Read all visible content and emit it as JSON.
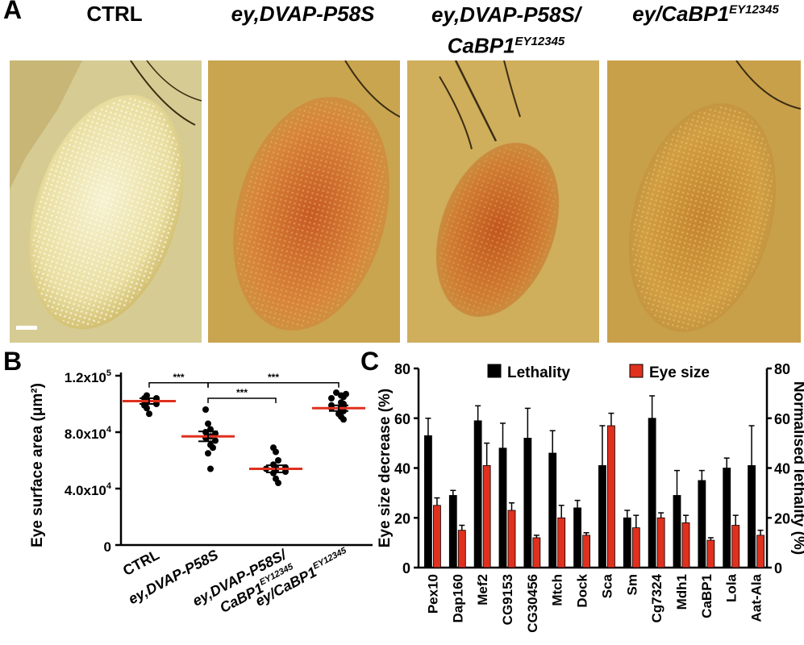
{
  "panelA": {
    "letter": "A",
    "genotypes": [
      {
        "main": "CTRL",
        "sup": "",
        "line2": "",
        "line2sup": ""
      },
      {
        "main": "ey,DVAP-P58S",
        "sup": "",
        "line2": "",
        "line2sup": ""
      },
      {
        "main": "ey,DVAP-P58S/",
        "sup": "",
        "line2": "CaBP1",
        "line2sup": "EY12345"
      },
      {
        "main": "ey/CaBP1",
        "sup": "EY12345",
        "line2": "",
        "line2sup": ""
      }
    ],
    "photos": [
      {
        "bg": "#d9cf9a",
        "eye": "#eadf9e",
        "eye_inner": "#f3eec8",
        "rim": "#c9b56a"
      },
      {
        "bg": "#c8a24a",
        "eye": "#d1853a",
        "eye_inner": "#c7652b",
        "rim": "#b98f3e"
      },
      {
        "bg": "#c9a653",
        "eye": "#d08f3a",
        "eye_inner": "#c76a26",
        "rim": "#9c7a35"
      },
      {
        "bg": "#c9a04a",
        "eye": "#cf9a3c",
        "eye_inner": "#c4852f",
        "rim": "#a9833a"
      }
    ]
  },
  "chart_data": [
    {
      "type": "scatter",
      "panel": "B",
      "ylabel": "Eye surface area (μm²)",
      "ylim": [
        0,
        120000
      ],
      "yticks": [
        {
          "value": 0,
          "label": "0",
          "sup": ""
        },
        {
          "value": 40000,
          "label": "4.0x10",
          "sup": "4"
        },
        {
          "value": 80000,
          "label": "8.0x10",
          "sup": "4"
        },
        {
          "value": 120000,
          "label": "1.2x10",
          "sup": "5"
        }
      ],
      "groups": [
        {
          "line1": "CTRL",
          "line1sup": "",
          "line2": "",
          "line2sup": "",
          "mean": 102000,
          "sem": 2000,
          "points": [
            106000,
            104000,
            104000,
            103000,
            103000,
            102000,
            101000,
            100000,
            99000,
            97000,
            93000
          ]
        },
        {
          "line1": "ey,DVAP-P58S",
          "line1sup": "",
          "line2": "",
          "line2sup": "",
          "mean": 77000,
          "sem": 3500,
          "points": [
            96000,
            86000,
            82000,
            80000,
            79000,
            77000,
            76000,
            74000,
            71000,
            69000,
            65000,
            54000
          ]
        },
        {
          "line1": "ey,DVAP-P58S/",
          "line1sup": "",
          "line2": "CaBP1",
          "line2sup": "EY12345",
          "mean": 54000,
          "sem": 2500,
          "points": [
            69000,
            66000,
            60000,
            57000,
            55000,
            55000,
            54000,
            53000,
            52000,
            51000,
            47000,
            44000
          ]
        },
        {
          "line1": "ey/CaBP1",
          "line1sup": "EY12345",
          "line2": "",
          "line2sup": "",
          "mean": 97000,
          "sem": 2000,
          "points": [
            108000,
            107000,
            106000,
            105000,
            104000,
            101000,
            100000,
            99000,
            98000,
            98000,
            97000,
            96000,
            95000,
            93000,
            91000,
            89000
          ]
        }
      ],
      "significance": [
        {
          "from": 0,
          "to": 1,
          "label": "***",
          "level": 115000
        },
        {
          "from": 1,
          "to": 3,
          "label": "***",
          "level": 115000
        },
        {
          "from": 1,
          "to": 2,
          "label": "***",
          "level": 104000
        }
      ]
    },
    {
      "type": "bar",
      "panel": "C",
      "categories": [
        "Pex10",
        "Dap160",
        "Mef2",
        "CG9153",
        "CG30456",
        "Mtch",
        "Dock",
        "Sca",
        "Sm",
        "Cg7324",
        "Mdh1",
        "CaBP1",
        "Lola",
        "Aat-Ala"
      ],
      "series": [
        {
          "name": "Lethality",
          "color": "#000000",
          "values": [
            53,
            29,
            59,
            48,
            52,
            46,
            24,
            41,
            20,
            60,
            29,
            35,
            40,
            41
          ],
          "errors": [
            7,
            2,
            6,
            10,
            12,
            9,
            3,
            16,
            3,
            9,
            10,
            4,
            4,
            16
          ]
        },
        {
          "name": "Eye size",
          "color": "#e0301e",
          "values": [
            25,
            15,
            41,
            23,
            12,
            20,
            13,
            57,
            16,
            20,
            18,
            11,
            17,
            13
          ],
          "errors": [
            3,
            2,
            9,
            3,
            1,
            5,
            1,
            5,
            5,
            2,
            3,
            1,
            4,
            2
          ]
        }
      ],
      "ylabel": "Eye size decrease (%)",
      "y2label": "Normalised lethality (%)",
      "ylim": [
        0,
        80
      ],
      "yticks": [
        0,
        20,
        40,
        60,
        80
      ],
      "y2ticks": [
        0,
        20,
        40,
        60,
        80
      ],
      "legend": "top"
    }
  ]
}
